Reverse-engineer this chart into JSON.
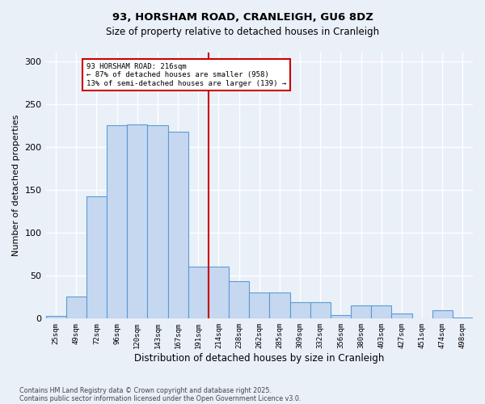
{
  "title1": "93, HORSHAM ROAD, CRANLEIGH, GU6 8DZ",
  "title2": "Size of property relative to detached houses in Cranleigh",
  "xlabel": "Distribution of detached houses by size in Cranleigh",
  "ylabel": "Number of detached properties",
  "bin_labels": [
    "25sqm",
    "49sqm",
    "72sqm",
    "96sqm",
    "120sqm",
    "143sqm",
    "167sqm",
    "191sqm",
    "214sqm",
    "238sqm",
    "262sqm",
    "285sqm",
    "309sqm",
    "332sqm",
    "356sqm",
    "380sqm",
    "403sqm",
    "427sqm",
    "451sqm",
    "474sqm",
    "498sqm"
  ],
  "bar_heights": [
    3,
    26,
    142,
    225,
    226,
    225,
    218,
    61,
    61,
    44,
    30,
    30,
    19,
    19,
    4,
    15,
    15,
    6,
    0,
    10,
    1
  ],
  "bar_color": "#c5d8f0",
  "bar_edge_color": "#5b9bd5",
  "background_color": "#eaf0f8",
  "grid_color": "#ffffff",
  "vline_color": "#cc0000",
  "annotation_text": "93 HORSHAM ROAD: 216sqm\n← 87% of detached houses are smaller (958)\n13% of semi-detached houses are larger (139) →",
  "annotation_box_color": "#cc0000",
  "ylim": [
    0,
    310
  ],
  "yticks": [
    0,
    50,
    100,
    150,
    200,
    250,
    300
  ],
  "footer1": "Contains HM Land Registry data © Crown copyright and database right 2025.",
  "footer2": "Contains public sector information licensed under the Open Government Licence v3.0."
}
